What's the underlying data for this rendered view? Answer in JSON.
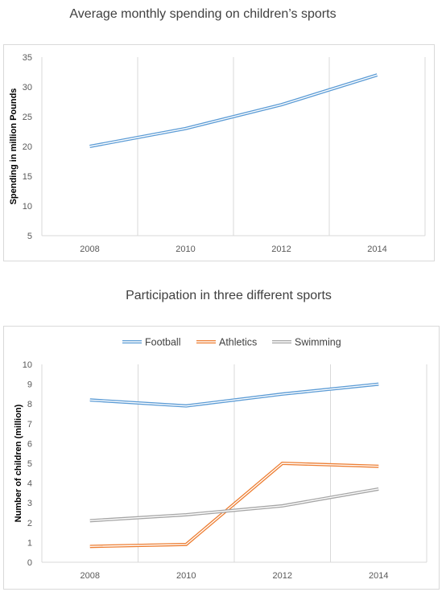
{
  "charts": {
    "spending": {
      "title": "Average monthly spending on children’s sports"
    },
    "participation": {
      "title": "Participation in three different sports"
    }
  },
  "colors": {
    "football": "#5b9bd5",
    "athletics": "#ed7d31",
    "swimming": "#a5a5a5",
    "grid": "#d9d9d9"
  },
  "chart_data": [
    {
      "type": "line",
      "title": "Average monthly spending on children’s sports",
      "xlabel": "",
      "ylabel": "Spending in million Pounds",
      "categories": [
        "2008",
        "2010",
        "2012",
        "2014"
      ],
      "series": [
        {
          "values": [
            20,
            23,
            27,
            32
          ]
        }
      ],
      "ylim": [
        5,
        35
      ],
      "yticks": [
        5,
        10,
        15,
        20,
        25,
        30,
        35
      ],
      "grid": "vertical",
      "legend": "none"
    },
    {
      "type": "line",
      "title": "Participation in three different sports",
      "xlabel": "",
      "ylabel": "Number of children (million)",
      "categories": [
        "2008",
        "2010",
        "2012",
        "2014"
      ],
      "series": [
        {
          "name": "Football",
          "values": [
            8.2,
            7.9,
            8.5,
            9.0
          ]
        },
        {
          "name": "Athletics",
          "values": [
            0.8,
            0.9,
            5.0,
            4.85
          ]
        },
        {
          "name": "Swimming",
          "values": [
            2.1,
            2.4,
            2.85,
            3.7
          ]
        }
      ],
      "ylim": [
        0,
        10
      ],
      "yticks": [
        0,
        1,
        2,
        3,
        4,
        5,
        6,
        7,
        8,
        9,
        10
      ],
      "grid": "vertical",
      "legend": "top"
    }
  ]
}
